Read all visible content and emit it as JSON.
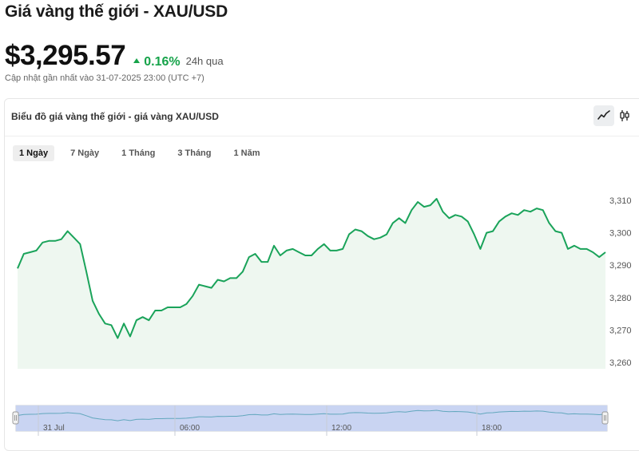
{
  "header": {
    "title": "Giá vàng thế giới - XAU/USD",
    "price": "$3,295.57",
    "change": "0.16%",
    "period": "24h qua",
    "updated": "Cập nhật gần nhất vào 31-07-2025 23:00 (UTC +7)"
  },
  "card": {
    "title": "Biểu đồ giá vàng thế giới - giá vàng XAU/USD",
    "tabs": [
      {
        "label": "1 Ngày",
        "active": true
      },
      {
        "label": "7 Ngày",
        "active": false
      },
      {
        "label": "1 Tháng",
        "active": false
      },
      {
        "label": "3 Tháng",
        "active": false
      },
      {
        "label": "1 Năm",
        "active": false
      }
    ],
    "chart_type_buttons": [
      {
        "icon": "line-chart-icon",
        "active": true
      },
      {
        "icon": "candlestick-icon",
        "active": false
      }
    ]
  },
  "colors": {
    "line": "#1aa35a",
    "fill": "#eef7f0",
    "up": "#16a34a",
    "navigator_line": "#62a7bd",
    "navigator_fill": "#c9d4f2"
  },
  "chart_data": {
    "type": "area",
    "ylim": [
      3258,
      3317
    ],
    "yticks": [
      "3,260",
      "3,270",
      "3,280",
      "3,290",
      "3,300",
      "3,310"
    ],
    "ytick_values": [
      3260,
      3270,
      3280,
      3290,
      3300,
      3310
    ],
    "navigator_xticks": [
      "31 Jul",
      "06:00",
      "12:00",
      "18:00"
    ],
    "values": [
      3289,
      3293.5,
      3294,
      3294.5,
      3297,
      3297.5,
      3297.5,
      3298,
      3300.5,
      3298.5,
      3296.5,
      3288,
      3279,
      3275,
      3272,
      3271.5,
      3267.5,
      3272,
      3268,
      3273,
      3274,
      3273,
      3276,
      3276,
      3277,
      3277,
      3277,
      3278,
      3280.5,
      3284,
      3283.5,
      3283,
      3285.5,
      3285,
      3286,
      3286,
      3288,
      3292.5,
      3293.5,
      3291,
      3291,
      3296,
      3293,
      3294.5,
      3295,
      3294,
      3293,
      3293,
      3295,
      3296.5,
      3294.5,
      3294.5,
      3295,
      3299.5,
      3301,
      3300.5,
      3299,
      3298,
      3298.5,
      3299.5,
      3303,
      3304.5,
      3303,
      3307,
      3309.5,
      3308,
      3308.5,
      3310.5,
      3306.5,
      3304.5,
      3305.5,
      3305,
      3303.5,
      3299.5,
      3295,
      3300,
      3300.5,
      3303.5,
      3305,
      3306,
      3305.5,
      3307,
      3306.5,
      3307.5,
      3307,
      3303,
      3300.5,
      3300,
      3295,
      3296,
      3295,
      3295,
      3294,
      3292.5,
      3294
    ]
  }
}
